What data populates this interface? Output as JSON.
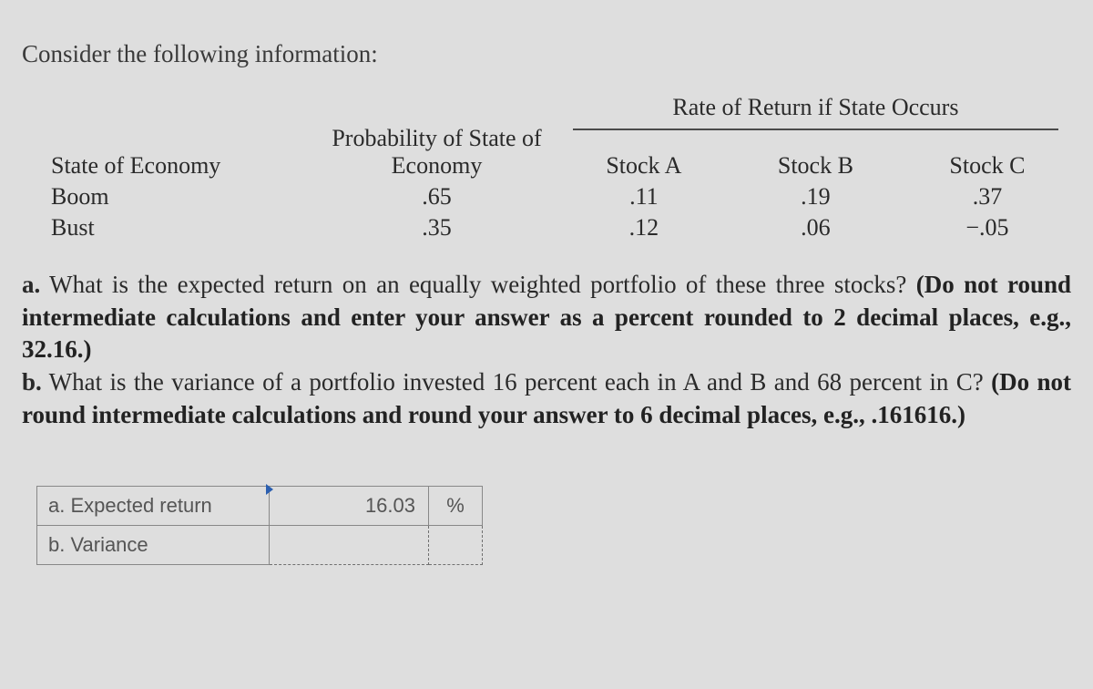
{
  "intro": "Consider the following information:",
  "table": {
    "group_header": "Rate of Return if State Occurs",
    "columns": {
      "state": "State of Economy",
      "prob": "Probability of State of Economy",
      "a": "Stock A",
      "b": "Stock B",
      "c": "Stock C"
    },
    "rows": [
      {
        "state": "Boom",
        "prob": ".65",
        "a": ".11",
        "b": ".19",
        "c": ".37"
      },
      {
        "state": "Bust",
        "prob": ".35",
        "a": ".12",
        "b": ".06",
        "c": "−.05"
      }
    ]
  },
  "questions": {
    "a_label": "a.",
    "a_text": " What is the expected return on an equally weighted portfolio of these three stocks? ",
    "a_hint": "(Do not round intermediate calculations and enter your answer as a percent rounded to 2 decimal places, e.g., 32.16.)",
    "b_label": "b.",
    "b_text": " What is the variance of a portfolio invested 16 percent each in A and B and 68 percent in C? ",
    "b_hint": "(Do not round intermediate calculations and round your answer to 6 decimal places, e.g., .161616.)"
  },
  "answers": {
    "a_label": "a. Expected return",
    "a_value": "16.03",
    "a_unit": "%",
    "b_label": "b. Variance",
    "b_value": "",
    "b_unit": ""
  },
  "style": {
    "background": "#dedede",
    "text_color": "#2a2a2a",
    "rule_color": "#4a4a4a",
    "body_font": "Georgia",
    "answer_font": "Arial",
    "intro_fontsize": 27,
    "table_fontsize": 26,
    "question_fontsize": 27,
    "answer_fontsize": 22
  }
}
